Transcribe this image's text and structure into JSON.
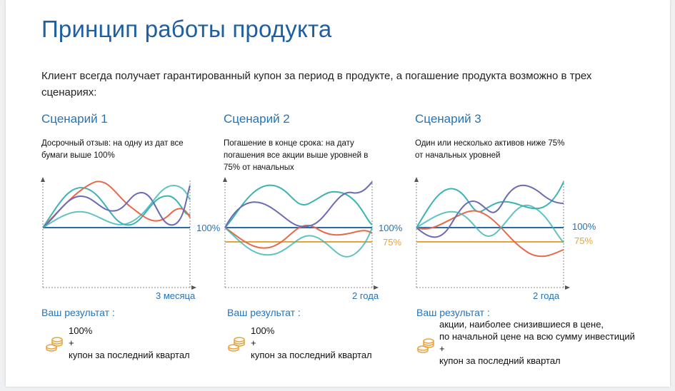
{
  "title": "Принцип работы продукта",
  "intro": "Клиент всегда получает гарантированный купон за период в продукте,  а погашение продукта возможно в трех сценариях:",
  "colors": {
    "title": "#1f5f9f",
    "accent": "#2573b8",
    "base_line": "#2a6aa8",
    "level_75": "#e8a33c",
    "series_teal": "#3bb3b3",
    "series_orange": "#e8684a",
    "series_purple": "#6a6ab5",
    "coin_icon": "#e8a33c"
  },
  "scenarios": [
    {
      "title": "Сценарий 1",
      "description": "Досрочный отзыв: на одну из дат все бумаги выше 100%",
      "level_100_label": "100%",
      "level_75_label": "",
      "x_end_label": "3 месяца",
      "result_title": "Ваш результат :",
      "result_lines": [
        "100%",
        "+",
        "купон за последний  квартал"
      ],
      "result_icon": "coins-icon"
    },
    {
      "title": "Сценарий 2",
      "description": "Погашение в конце срока: на дату погашения все акции выше уровней в 75% от начальных",
      "level_100_label": "100%",
      "level_75_label": "75%",
      "x_end_label": "2 года",
      "result_title": "Ваш результат :",
      "result_lines": [
        "100%",
        "+",
        "купон за последний  квартал"
      ],
      "result_icon": "coins-icon"
    },
    {
      "title": "Сценарий 3",
      "description": "Один или несколько активов ниже 75% от начальных уровней",
      "level_100_label": "100%",
      "level_75_label": "75%",
      "x_end_label": "2 года",
      "result_title": "Ваш результат :",
      "result_lines": [
        "акции, наиболее снизившиеся в цене,",
        "по начальной цене на всю сумму инвестиций",
        "+",
        "купон за последний  квартал"
      ],
      "result_icon": "coins-icon"
    }
  ]
}
